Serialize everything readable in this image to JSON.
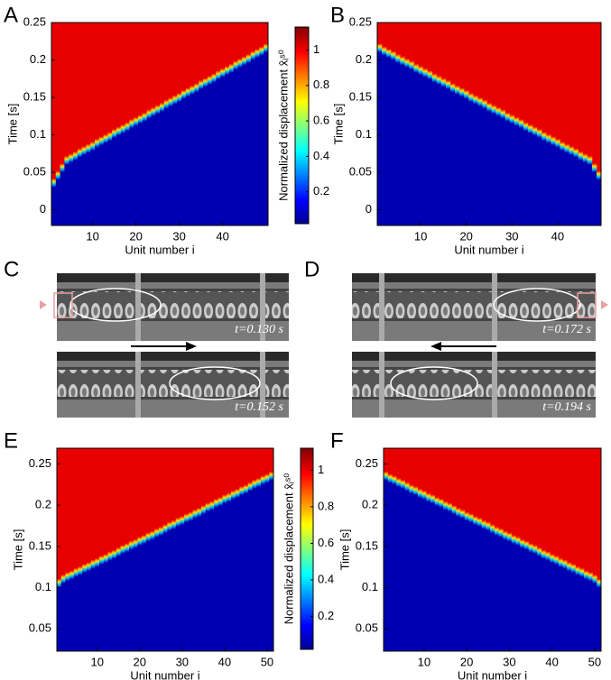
{
  "chart_data": [
    {
      "type": "heatmap",
      "panel": "A",
      "xlabel": "Unit number i",
      "ylabel": "Time [s]",
      "x": [
        1,
        2,
        3,
        4,
        5,
        6,
        7,
        8,
        9,
        10,
        11,
        12,
        13,
        14,
        15,
        16,
        17,
        18,
        19,
        20,
        21,
        22,
        23,
        24,
        25,
        26,
        27,
        28,
        29,
        30,
        31,
        32,
        33,
        34,
        35,
        36,
        37,
        38,
        39,
        40,
        41,
        42,
        43,
        44,
        45,
        46,
        47,
        48,
        49,
        50
      ],
      "values": [
        0.03,
        0.04,
        0.05,
        0.06,
        0.063,
        0.066,
        0.07,
        0.073,
        0.076,
        0.079,
        0.083,
        0.086,
        0.089,
        0.092,
        0.096,
        0.099,
        0.102,
        0.105,
        0.109,
        0.112,
        0.115,
        0.118,
        0.122,
        0.125,
        0.128,
        0.131,
        0.135,
        0.138,
        0.141,
        0.144,
        0.148,
        0.151,
        0.154,
        0.157,
        0.161,
        0.164,
        0.167,
        0.17,
        0.174,
        0.177,
        0.18,
        0.183,
        0.187,
        0.19,
        0.193,
        0.196,
        0.2,
        0.203,
        0.206,
        0.21
      ],
      "xlim": [
        0.5,
        50.5
      ],
      "ylim": [
        -0.021,
        0.25
      ],
      "xticks": [
        10,
        20,
        30,
        40
      ],
      "yticks": [
        0,
        0.05,
        0.1,
        0.15,
        0.2,
        0.25
      ],
      "colorbar": {
        "label": "Normalized displacement x̂ᵢˢ⁰",
        "clim": [
          0.02,
          1.13
        ],
        "ticks": [
          0.2,
          0.4,
          0.6,
          0.8,
          1
        ]
      }
    },
    {
      "type": "heatmap",
      "panel": "B",
      "xlabel": "Unit number i",
      "ylabel": "Time [s]",
      "x": [
        1,
        2,
        3,
        4,
        5,
        6,
        7,
        8,
        9,
        10,
        11,
        12,
        13,
        14,
        15,
        16,
        17,
        18,
        19,
        20,
        21,
        22,
        23,
        24,
        25,
        26,
        27,
        28,
        29,
        30,
        31,
        32,
        33,
        34,
        35,
        36,
        37,
        38,
        39,
        40,
        41,
        42,
        43,
        44,
        45,
        46,
        47,
        48,
        49
      ],
      "values": [
        0.21,
        0.206,
        0.203,
        0.2,
        0.196,
        0.193,
        0.19,
        0.187,
        0.183,
        0.18,
        0.177,
        0.174,
        0.17,
        0.167,
        0.164,
        0.161,
        0.157,
        0.154,
        0.151,
        0.148,
        0.144,
        0.141,
        0.138,
        0.135,
        0.131,
        0.128,
        0.125,
        0.122,
        0.118,
        0.115,
        0.112,
        0.109,
        0.105,
        0.102,
        0.099,
        0.096,
        0.092,
        0.089,
        0.086,
        0.083,
        0.079,
        0.076,
        0.073,
        0.07,
        0.066,
        0.063,
        0.06,
        0.05,
        0.04
      ],
      "xlim": [
        0.5,
        49.5
      ],
      "ylim": [
        -0.021,
        0.25
      ],
      "xticks": [
        10,
        20,
        30,
        40
      ],
      "yticks": [
        0,
        0.05,
        0.1,
        0.15,
        0.2,
        0.25
      ]
    },
    {
      "type": "heatmap",
      "panel": "E",
      "xlabel": "Unit number i",
      "ylabel": "Time [s]",
      "x": [
        1,
        2,
        3,
        4,
        5,
        6,
        7,
        8,
        9,
        10,
        11,
        12,
        13,
        14,
        15,
        16,
        17,
        18,
        19,
        20,
        21,
        22,
        23,
        24,
        25,
        26,
        27,
        28,
        29,
        30,
        31,
        32,
        33,
        34,
        35,
        36,
        37,
        38,
        39,
        40,
        41,
        42,
        43,
        44,
        45,
        46,
        47,
        48,
        49,
        50,
        51
      ],
      "values": [
        0.1,
        0.105,
        0.108,
        0.11,
        0.113,
        0.115,
        0.118,
        0.12,
        0.123,
        0.125,
        0.128,
        0.13,
        0.133,
        0.135,
        0.138,
        0.141,
        0.143,
        0.146,
        0.148,
        0.151,
        0.153,
        0.156,
        0.158,
        0.161,
        0.163,
        0.166,
        0.169,
        0.171,
        0.174,
        0.176,
        0.179,
        0.181,
        0.184,
        0.186,
        0.189,
        0.192,
        0.194,
        0.197,
        0.199,
        0.202,
        0.204,
        0.207,
        0.209,
        0.212,
        0.214,
        0.217,
        0.22,
        0.222,
        0.225,
        0.227,
        0.23
      ],
      "xlim": [
        0.5,
        51.5
      ],
      "ylim": [
        0.023,
        0.269
      ],
      "xticks": [
        10,
        20,
        30,
        40,
        50
      ],
      "yticks": [
        0.05,
        0.1,
        0.15,
        0.2,
        0.25
      ],
      "colorbar": {
        "label": "Normalized displacement x̂ᵢˢ⁰",
        "clim": [
          0.02,
          1.12
        ],
        "ticks": [
          0.2,
          0.4,
          0.6,
          0.8,
          1
        ]
      }
    },
    {
      "type": "heatmap",
      "panel": "F",
      "xlabel": "Unit number i",
      "ylabel": "Time [s]",
      "x": [
        1,
        2,
        3,
        4,
        5,
        6,
        7,
        8,
        9,
        10,
        11,
        12,
        13,
        14,
        15,
        16,
        17,
        18,
        19,
        20,
        21,
        22,
        23,
        24,
        25,
        26,
        27,
        28,
        29,
        30,
        31,
        32,
        33,
        34,
        35,
        36,
        37,
        38,
        39,
        40,
        41,
        42,
        43,
        44,
        45,
        46,
        47,
        48,
        49,
        50,
        51
      ],
      "values": [
        0.23,
        0.227,
        0.225,
        0.222,
        0.22,
        0.217,
        0.214,
        0.212,
        0.209,
        0.207,
        0.204,
        0.202,
        0.199,
        0.197,
        0.194,
        0.192,
        0.189,
        0.186,
        0.184,
        0.181,
        0.179,
        0.176,
        0.174,
        0.171,
        0.169,
        0.166,
        0.163,
        0.161,
        0.158,
        0.156,
        0.153,
        0.151,
        0.148,
        0.146,
        0.143,
        0.141,
        0.138,
        0.135,
        0.133,
        0.13,
        0.128,
        0.125,
        0.123,
        0.12,
        0.118,
        0.115,
        0.113,
        0.11,
        0.108,
        0.105,
        0.1
      ],
      "xlim": [
        0.5,
        51.5
      ],
      "ylim": [
        0.023,
        0.269
      ],
      "xticks": [
        10,
        20,
        30,
        40,
        50
      ],
      "yticks": [
        0.05,
        0.1,
        0.15,
        0.2,
        0.25
      ]
    }
  ],
  "photos": [
    {
      "panel": "C",
      "frames": [
        {
          "time": "t=0.130 s"
        },
        {
          "time": "t=0.152 s"
        }
      ]
    },
    {
      "panel": "D",
      "frames": [
        {
          "time": "t=0.172 s"
        },
        {
          "time": "t=0.194 s"
        }
      ]
    }
  ]
}
